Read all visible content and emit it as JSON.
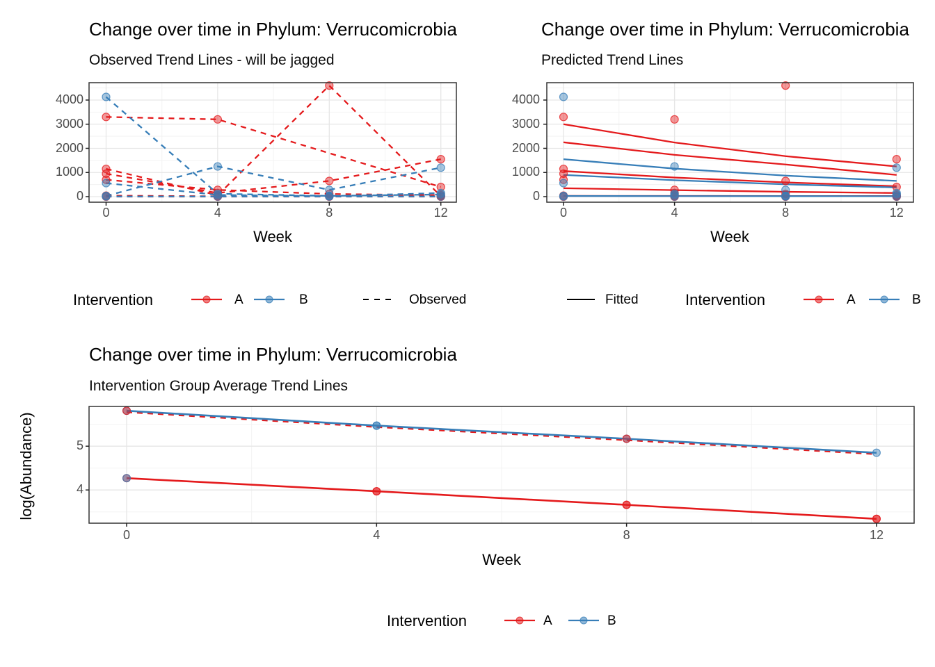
{
  "palette": {
    "group_A": "#E41A1C",
    "group_B": "#377EB8",
    "overlap_note": "overlapping translucent points render dark maroon/purple",
    "legend_key_black": "#000000",
    "grid_major": "#E6E6E6",
    "grid_minor": "#F3F3F3",
    "panel_border": "#333333",
    "tick_text": "#4D4D4D",
    "title_text": "#000000"
  },
  "chart_data": [
    {
      "type": "line",
      "title": "Change over time in Phylum: Verrucomicrobia",
      "subtitle": "Observed Trend Lines - will be jagged",
      "xlabel": "Week",
      "ylabel": "",
      "x_ticks": [
        0,
        4,
        8,
        12
      ],
      "y_ticks": [
        0,
        1000,
        2000,
        3000,
        4000
      ],
      "xlim": [
        -0.6,
        12.6
      ],
      "ylim": [
        -230,
        4720
      ],
      "grid": true,
      "line_style": "dashed",
      "legend": {
        "title": "Intervention",
        "items": [
          {
            "label": "A",
            "group": "A"
          },
          {
            "label": "B",
            "group": "B"
          }
        ],
        "linetype_items": [
          {
            "label": "Observed",
            "style": "dashed"
          }
        ]
      },
      "series": [
        {
          "name": "subject-A1",
          "group": "A",
          "points": [
            [
              0,
              3300
            ],
            [
              4,
              3200
            ],
            [
              12,
              400
            ]
          ]
        },
        {
          "name": "subject-A2",
          "group": "A",
          "points": [
            [
              0,
              1150
            ],
            [
              4,
              60
            ],
            [
              8,
              4600
            ],
            [
              12,
              20
            ]
          ]
        },
        {
          "name": "subject-A3",
          "group": "A",
          "points": [
            [
              0,
              950
            ],
            [
              4,
              150
            ],
            [
              8,
              650
            ],
            [
              12,
              1550
            ]
          ]
        },
        {
          "name": "subject-A4",
          "group": "A",
          "points": [
            [
              0,
              700
            ],
            [
              4,
              280
            ],
            [
              8,
              110
            ],
            [
              12,
              60
            ]
          ]
        },
        {
          "name": "subject-A5",
          "group": "A",
          "points": [
            [
              0,
              40
            ],
            [
              4,
              15
            ],
            [
              8,
              20
            ],
            [
              12,
              10
            ]
          ]
        },
        {
          "name": "subject-A6",
          "group": "A",
          "points": [
            [
              0,
              0
            ],
            [
              4,
              0
            ],
            [
              8,
              0
            ],
            [
              12,
              0
            ]
          ]
        },
        {
          "name": "subject-B1",
          "group": "B",
          "points": [
            [
              0,
              4130
            ],
            [
              4,
              120
            ],
            [
              8,
              30
            ],
            [
              12,
              90
            ]
          ]
        },
        {
          "name": "subject-B2",
          "group": "B",
          "points": [
            [
              0,
              560
            ],
            [
              4,
              70
            ],
            [
              8,
              20
            ],
            [
              12,
              150
            ]
          ]
        },
        {
          "name": "subject-B3",
          "group": "B",
          "points": [
            [
              0,
              30
            ],
            [
              4,
              1250
            ],
            [
              8,
              280
            ],
            [
              12,
              1200
            ]
          ]
        },
        {
          "name": "subject-B4",
          "group": "B",
          "points": [
            [
              0,
              5
            ],
            [
              4,
              5
            ],
            [
              8,
              5
            ],
            [
              12,
              5
            ]
          ]
        }
      ]
    },
    {
      "type": "line",
      "title": "Change over time in Phylum: Verrucomicrobia",
      "subtitle": "Predicted Trend Lines",
      "xlabel": "Week",
      "ylabel": "",
      "x_ticks": [
        0,
        4,
        8,
        12
      ],
      "y_ticks": [
        0,
        1000,
        2000,
        3000,
        4000
      ],
      "xlim": [
        -0.6,
        12.6
      ],
      "ylim": [
        -230,
        4720
      ],
      "grid": true,
      "line_style": "solid",
      "legend": {
        "title": "Intervention",
        "items": [
          {
            "label": "A",
            "group": "A"
          },
          {
            "label": "B",
            "group": "B"
          }
        ],
        "linetype_items": [
          {
            "label": "Fitted",
            "style": "solid"
          }
        ]
      },
      "fitted_series": [
        {
          "name": "fit-A1",
          "group": "A",
          "points": [
            [
              0,
              3000
            ],
            [
              4,
              2240
            ],
            [
              8,
              1675
            ],
            [
              12,
              1250
            ]
          ]
        },
        {
          "name": "fit-A2",
          "group": "A",
          "points": [
            [
              0,
              2250
            ],
            [
              4,
              1730
            ],
            [
              8,
              1330
            ],
            [
              12,
              900
            ]
          ]
        },
        {
          "name": "fit-A3",
          "group": "A",
          "points": [
            [
              0,
              1060
            ],
            [
              4,
              790
            ],
            [
              8,
              590
            ],
            [
              12,
              430
            ]
          ]
        },
        {
          "name": "fit-A4",
          "group": "A",
          "points": [
            [
              0,
              350
            ],
            [
              4,
              270
            ],
            [
              8,
              200
            ],
            [
              12,
              150
            ]
          ]
        },
        {
          "name": "fit-A5",
          "group": "A",
          "points": [
            [
              0,
              30
            ],
            [
              4,
              28
            ],
            [
              8,
              26
            ],
            [
              12,
              25
            ]
          ]
        },
        {
          "name": "fit-B1",
          "group": "B",
          "points": [
            [
              0,
              1550
            ],
            [
              4,
              1160
            ],
            [
              8,
              870
            ],
            [
              12,
              650
            ]
          ]
        },
        {
          "name": "fit-B2",
          "group": "B",
          "points": [
            [
              0,
              900
            ],
            [
              4,
              680
            ],
            [
              8,
              510
            ],
            [
              12,
              380
            ]
          ]
        },
        {
          "name": "fit-B3",
          "group": "B",
          "points": [
            [
              0,
              25
            ],
            [
              4,
              22
            ],
            [
              8,
              20
            ],
            [
              12,
              18
            ]
          ]
        }
      ],
      "scatter_series": [
        {
          "name": "subject-A1",
          "group": "A",
          "points": [
            [
              0,
              3300
            ],
            [
              4,
              3200
            ],
            [
              12,
              400
            ]
          ]
        },
        {
          "name": "subject-A2",
          "group": "A",
          "points": [
            [
              0,
              1150
            ],
            [
              4,
              60
            ],
            [
              8,
              4600
            ],
            [
              12,
              20
            ]
          ]
        },
        {
          "name": "subject-A3",
          "group": "A",
          "points": [
            [
              0,
              950
            ],
            [
              4,
              150
            ],
            [
              8,
              650
            ],
            [
              12,
              1550
            ]
          ]
        },
        {
          "name": "subject-A4",
          "group": "A",
          "points": [
            [
              0,
              700
            ],
            [
              4,
              280
            ],
            [
              8,
              110
            ],
            [
              12,
              60
            ]
          ]
        },
        {
          "name": "subject-A5",
          "group": "A",
          "points": [
            [
              0,
              40
            ],
            [
              4,
              15
            ],
            [
              8,
              20
            ],
            [
              12,
              10
            ]
          ]
        },
        {
          "name": "subject-A6",
          "group": "A",
          "points": [
            [
              0,
              0
            ],
            [
              4,
              0
            ],
            [
              8,
              0
            ],
            [
              12,
              0
            ]
          ]
        },
        {
          "name": "subject-B1",
          "group": "B",
          "points": [
            [
              0,
              4130
            ],
            [
              4,
              120
            ],
            [
              8,
              30
            ],
            [
              12,
              90
            ]
          ]
        },
        {
          "name": "subject-B2",
          "group": "B",
          "points": [
            [
              0,
              560
            ],
            [
              4,
              70
            ],
            [
              8,
              20
            ],
            [
              12,
              150
            ]
          ]
        },
        {
          "name": "subject-B3",
          "group": "B",
          "points": [
            [
              0,
              30
            ],
            [
              4,
              1250
            ],
            [
              8,
              280
            ],
            [
              12,
              1200
            ]
          ]
        },
        {
          "name": "subject-B4",
          "group": "B",
          "points": [
            [
              0,
              5
            ],
            [
              4,
              5
            ],
            [
              8,
              5
            ],
            [
              12,
              5
            ]
          ]
        }
      ]
    },
    {
      "type": "line",
      "title": "Change over time in Phylum: Verrucomicrobia",
      "subtitle": "Intervention Group Average Trend Lines",
      "xlabel": "Week",
      "ylabel": "log(Abundance)",
      "x_ticks": [
        0,
        4,
        8,
        12
      ],
      "y_ticks": [
        4,
        5
      ],
      "xlim": [
        -0.6,
        12.6
      ],
      "ylim": [
        3.24,
        5.9
      ],
      "grid": true,
      "legend": {
        "title": "Intervention",
        "items": [
          {
            "label": "A",
            "group": "A"
          },
          {
            "label": "B",
            "group": "B"
          }
        ]
      },
      "series": [
        {
          "name": "group-B-average-dashed-overlay",
          "group": "A",
          "style": "dashed",
          "points": [
            [
              0,
              5.78
            ],
            [
              4,
              5.44
            ],
            [
              8,
              5.14
            ],
            [
              12,
              4.82
            ]
          ]
        },
        {
          "name": "group-B-average",
          "group": "B",
          "style": "solid",
          "points": [
            [
              0,
              5.81
            ],
            [
              4,
              5.47
            ],
            [
              8,
              5.17
            ],
            [
              12,
              4.85
            ]
          ]
        },
        {
          "name": "group-A-average",
          "group": "A",
          "style": "solid",
          "points": [
            [
              0,
              4.27
            ],
            [
              4,
              3.97
            ],
            [
              8,
              3.66
            ],
            [
              12,
              3.34
            ]
          ]
        }
      ],
      "markers": [
        {
          "x": 0,
          "y": 5.81,
          "groups": [
            "B",
            "A"
          ]
        },
        {
          "x": 4,
          "y": 5.47,
          "groups": [
            "B",
            "B"
          ]
        },
        {
          "x": 8,
          "y": 5.17,
          "groups": [
            "B",
            "A"
          ]
        },
        {
          "x": 12,
          "y": 4.85,
          "groups": [
            "B"
          ]
        },
        {
          "x": 0,
          "y": 4.27,
          "groups": [
            "A",
            "B"
          ]
        },
        {
          "x": 4,
          "y": 3.97,
          "groups": [
            "A",
            "A"
          ]
        },
        {
          "x": 8,
          "y": 3.66,
          "groups": [
            "A",
            "A"
          ]
        },
        {
          "x": 12,
          "y": 3.34,
          "groups": [
            "A",
            "A"
          ]
        }
      ]
    }
  ]
}
